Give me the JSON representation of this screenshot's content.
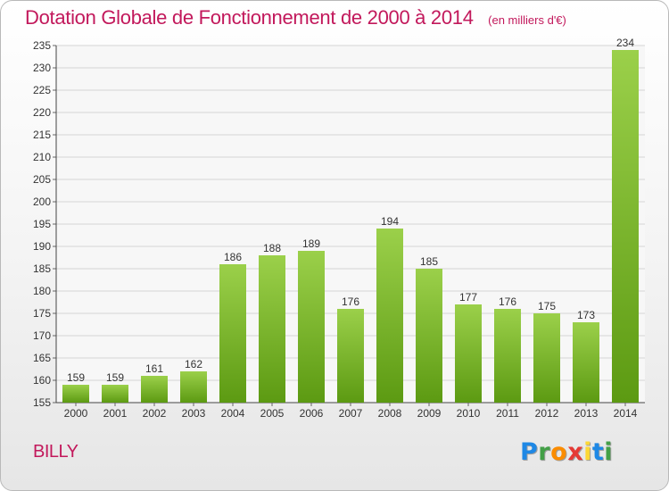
{
  "title": "Dotation Globale de Fonctionnement de 2000 à 2014",
  "unit": "(en milliers d'€)",
  "commune": "BILLY",
  "logo": {
    "letters": [
      "P",
      "r",
      "o",
      "x",
      "i",
      "t",
      "i"
    ],
    "colors": [
      "#1e88e5",
      "#43a047",
      "#fb8c00",
      "#e53935",
      "#fdd835",
      "#1e88e5",
      "#43a047"
    ]
  },
  "colors": {
    "bar_light": "#9bd04a",
    "bar_dark": "#5c9a12",
    "title": "#c2185b"
  },
  "chart_data": {
    "type": "bar",
    "categories": [
      "2000",
      "2001",
      "2002",
      "2003",
      "2004",
      "2005",
      "2006",
      "2007",
      "2008",
      "2009",
      "2010",
      "2011",
      "2012",
      "2013",
      "2014"
    ],
    "values": [
      159,
      159,
      161,
      162,
      186,
      188,
      189,
      176,
      194,
      185,
      177,
      176,
      175,
      173,
      234
    ],
    "ylim": [
      155,
      235
    ],
    "yticks": [
      155,
      160,
      165,
      170,
      175,
      180,
      185,
      190,
      195,
      200,
      205,
      210,
      215,
      220,
      225,
      230,
      235
    ],
    "grid": true,
    "data_labels": true
  }
}
